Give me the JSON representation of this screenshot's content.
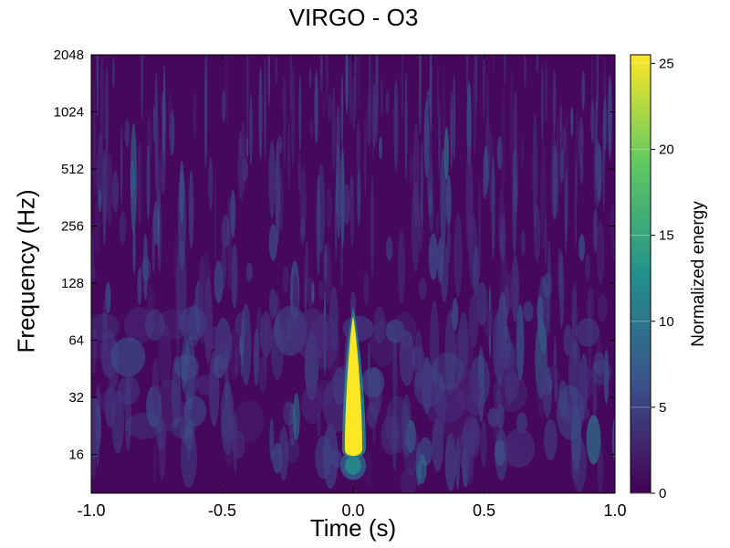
{
  "chart_data": {
    "type": "heatmap",
    "title": "VIRGO - O3",
    "xlabel": "Time (s)",
    "ylabel": "Frequency (Hz)",
    "colorbar_label": "Normalized energy",
    "colormap": "viridis",
    "colors": [
      "#440154",
      "#3b528b",
      "#21918c",
      "#5ec962",
      "#fde725"
    ],
    "xlim": [
      -1.0,
      1.0
    ],
    "ylim": [
      10,
      2048
    ],
    "yscale": "log",
    "x_ticks": [
      -1.0,
      -0.5,
      0.0,
      0.5,
      1.0
    ],
    "x_tick_labels": [
      "-1.0",
      "-0.5",
      "0.0",
      "0.5",
      "1.0"
    ],
    "y_ticks": [
      16,
      32,
      64,
      128,
      256,
      512,
      1024,
      2048
    ],
    "y_tick_labels": [
      "16",
      "32",
      "64",
      "128",
      "256",
      "512",
      "1024",
      "2048"
    ],
    "colorbar_range": [
      0,
      25.5
    ],
    "colorbar_ticks": [
      0,
      5,
      10,
      15,
      20,
      25
    ],
    "colorbar_tick_labels": [
      "0",
      "5",
      "10",
      "15",
      "20",
      "25"
    ],
    "grid": false,
    "features": [
      {
        "time": 0.0,
        "freq_low": 16,
        "freq_peak": 30,
        "freq_high": 90,
        "energy": 25.5
      },
      {
        "time": 0.0,
        "freq_low": 12,
        "freq_high": 16,
        "energy": 8
      }
    ]
  }
}
